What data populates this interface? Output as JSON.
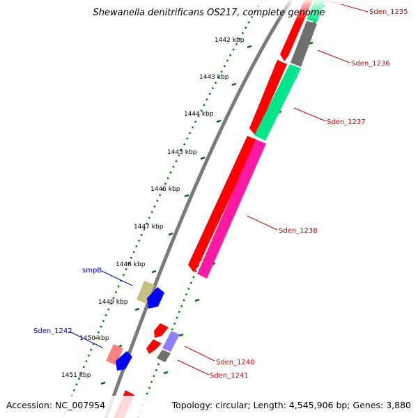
{
  "title": "Shewanella denitrificans OS217, complete genome",
  "footer": {
    "accession": "Accession: NC_007954",
    "summary": "Topology: circular; Length: 4,545,906 bp; Genes: 3,880"
  },
  "kbp_ticks": [
    "1442 kbp",
    "1443 kbp",
    "1444 kbp",
    "1445 kbp",
    "1446 kbp",
    "1447 kbp",
    "1448 kbp",
    "1449 kbp",
    "1450 kbp",
    "1451 kbp"
  ],
  "gene_labels": [
    {
      "text": "Sden_1235",
      "color": "#cc0000"
    },
    {
      "text": "Sden_1236",
      "color": "#cc0000"
    },
    {
      "text": "Sden_1237",
      "color": "#cc0000"
    },
    {
      "text": "Sden_1238",
      "color": "#cc0000"
    },
    {
      "text": "Sden_1240",
      "color": "#cc0000"
    },
    {
      "text": "Sden_1241",
      "color": "#cc0000"
    },
    {
      "text": "smpB",
      "color": "#0000cc"
    },
    {
      "text": "Sden_1242",
      "color": "#0000cc"
    }
  ],
  "colors": {
    "cds_forward": "#ff0000",
    "cds_reverse": "#ff0000",
    "rna": "#0000ff",
    "backbone": "#808080",
    "tick": "#008000",
    "gene_teal": "#00e68a",
    "gene_gray": "#6f6f6f",
    "gene_pink": "#ff1aa3",
    "gene_olive": "#c8c080",
    "gene_salmon": "#ff8080",
    "gene_lavender": "#8f7fff"
  }
}
